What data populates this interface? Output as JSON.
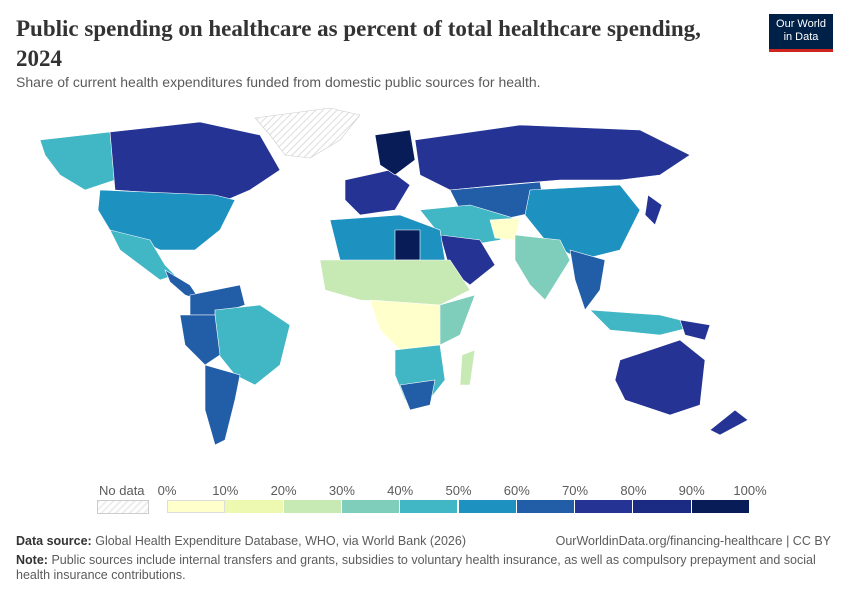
{
  "header": {
    "title": "Public spending on healthcare as percent of total healthcare spending, 2024",
    "subtitle": "Share of current health expenditures funded from domestic public sources for health."
  },
  "logo": {
    "line1": "Our World",
    "line2": "in Data"
  },
  "legend": {
    "no_data_label": "No data",
    "ticks": [
      "0%",
      "10%",
      "20%",
      "30%",
      "40%",
      "50%",
      "60%",
      "70%",
      "80%",
      "90%",
      "100%"
    ],
    "colors": [
      "#ffffcc",
      "#edf8b1",
      "#c7e9b4",
      "#7fcdbb",
      "#41b6c4",
      "#1d91c0",
      "#225ea8",
      "#253494",
      "#1b2a82",
      "#081d58"
    ]
  },
  "footer": {
    "source_label": "Data source:",
    "source": "Global Health Expenditure Database, WHO, via World Bank (2026)",
    "url": "OurWorldinData.org/financing-healthcare | CC BY",
    "note_label": "Note:",
    "note": "Public sources include internal transfers and grants, subsidies to voluntary health insurance, as well as compulsory prepayment and social health insurance contributions."
  }
}
